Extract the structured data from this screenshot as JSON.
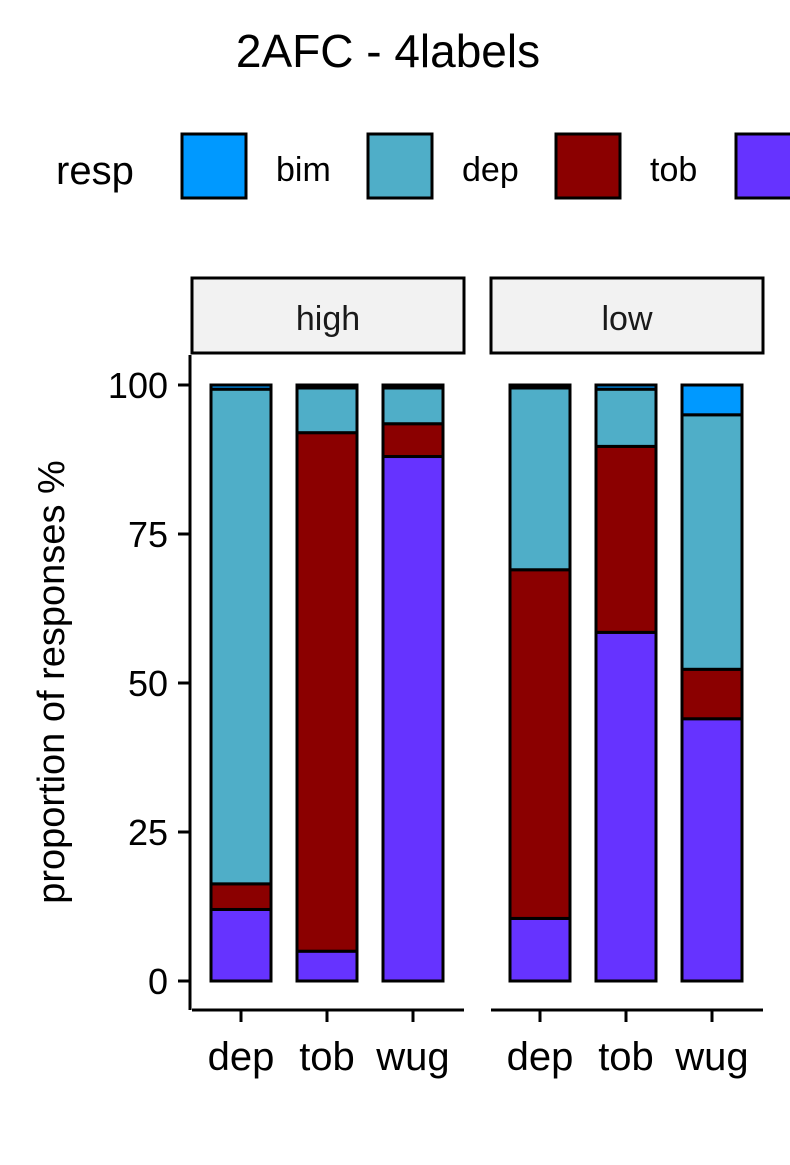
{
  "chart_data": {
    "type": "bar",
    "stacked": true,
    "title": "2AFC - 4labels",
    "ylabel": "proportion of responses %",
    "xlabel": "",
    "ylim": [
      0,
      100
    ],
    "yticks": [
      0,
      25,
      50,
      75,
      100
    ],
    "legend": {
      "title": "resp",
      "placement": "top",
      "entries": [
        {
          "name": "bim",
          "color": "#0099FF"
        },
        {
          "name": "dep",
          "color": "#4FAEC8"
        },
        {
          "name": "tob",
          "color": "#8B0000"
        },
        {
          "name": "wug",
          "color": "#6633FF"
        }
      ]
    },
    "categories": [
      "dep",
      "tob",
      "wug"
    ],
    "series_order_from_bottom": [
      "wug",
      "tob",
      "dep",
      "bim"
    ],
    "panels": [
      {
        "label": "high",
        "bars": [
          {
            "category": "dep",
            "values": {
              "wug": 12,
              "tob": 4.3,
              "dep": 83,
              "bim": 0.7
            }
          },
          {
            "category": "tob",
            "values": {
              "wug": 5,
              "tob": 87,
              "dep": 7.5,
              "bim": 0.5
            }
          },
          {
            "category": "wug",
            "values": {
              "wug": 88,
              "tob": 5.5,
              "dep": 6,
              "bim": 0.5
            }
          }
        ]
      },
      {
        "label": "low",
        "bars": [
          {
            "category": "dep",
            "values": {
              "wug": 10.5,
              "tob": 58.5,
              "dep": 30.5,
              "bim": 0.5
            }
          },
          {
            "category": "tob",
            "values": {
              "wug": 58.5,
              "tob": 31.2,
              "dep": 9.6,
              "bim": 0.7
            }
          },
          {
            "category": "wug",
            "values": {
              "wug": 44,
              "tob": 8.3,
              "dep": 42.7,
              "bim": 5
            }
          }
        ]
      }
    ]
  }
}
